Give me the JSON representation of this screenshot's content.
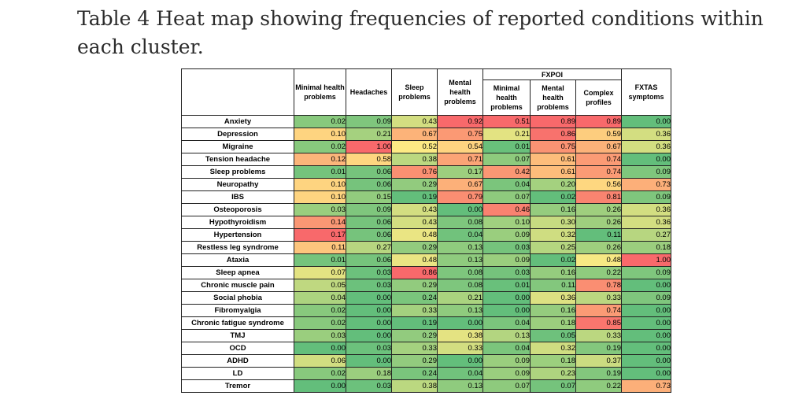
{
  "caption": "Table 4 Heat map showing frequencies of reported conditions within each cluster.",
  "table": {
    "group_header": "FXPOI",
    "columns": [
      "Minimal health problems",
      "Headaches",
      "Sleep problems",
      "Mental health problems",
      "Minimal health problems",
      "Mental health problems",
      "Complex profiles",
      "FXTAS symptoms"
    ],
    "rows": [
      {
        "label": "Anxiety",
        "values": [
          "0.02",
          "0.09",
          "0.43",
          "0.92",
          "0.51",
          "0.89",
          "0.89",
          "0.00"
        ]
      },
      {
        "label": "Depression",
        "values": [
          "0.10",
          "0.21",
          "0.67",
          "0.75",
          "0.21",
          "0.86",
          "0.59",
          "0.36"
        ]
      },
      {
        "label": "Migraine",
        "values": [
          "0.02",
          "1.00",
          "0.52",
          "0.54",
          "0.01",
          "0.75",
          "0.67",
          "0.36"
        ]
      },
      {
        "label": "Tension headache",
        "values": [
          "0.12",
          "0.58",
          "0.38",
          "0.71",
          "0.07",
          "0.61",
          "0.74",
          "0.00"
        ]
      },
      {
        "label": "Sleep problems",
        "values": [
          "0.01",
          "0.06",
          "0.76",
          "0.17",
          "0.42",
          "0.61",
          "0.74",
          "0.09"
        ]
      },
      {
        "label": "Neuropathy",
        "values": [
          "0.10",
          "0.06",
          "0.29",
          "0.67",
          "0.04",
          "0.20",
          "0.56",
          "0.73"
        ]
      },
      {
        "label": "IBS",
        "values": [
          "0.10",
          "0.15",
          "0.19",
          "0.79",
          "0.07",
          "0.02",
          "0.81",
          "0.09"
        ]
      },
      {
        "label": "Osteoporosis",
        "values": [
          "0.03",
          "0.09",
          "0.43",
          "0.00",
          "0.46",
          "0.16",
          "0.26",
          "0.36"
        ]
      },
      {
        "label": "Hypothyroidism",
        "values": [
          "0.14",
          "0.06",
          "0.43",
          "0.08",
          "0.10",
          "0.30",
          "0.26",
          "0.36"
        ]
      },
      {
        "label": "Hypertension",
        "values": [
          "0.17",
          "0.06",
          "0.48",
          "0.04",
          "0.09",
          "0.32",
          "0.11",
          "0.27"
        ]
      },
      {
        "label": "Restless leg syndrome",
        "values": [
          "0.11",
          "0.27",
          "0.29",
          "0.13",
          "0.03",
          "0.25",
          "0.26",
          "0.18"
        ]
      },
      {
        "label": "Ataxia",
        "values": [
          "0.01",
          "0.06",
          "0.48",
          "0.13",
          "0.09",
          "0.02",
          "0.48",
          "1.00"
        ]
      },
      {
        "label": "Sleep apnea",
        "values": [
          "0.07",
          "0.03",
          "0.86",
          "0.08",
          "0.03",
          "0.16",
          "0.22",
          "0.09"
        ]
      },
      {
        "label": "Chronic muscle pain",
        "values": [
          "0.05",
          "0.03",
          "0.29",
          "0.08",
          "0.01",
          "0.11",
          "0.78",
          "0.00"
        ]
      },
      {
        "label": "Social phobia",
        "values": [
          "0.04",
          "0.00",
          "0.24",
          "0.21",
          "0.00",
          "0.36",
          "0.33",
          "0.09"
        ]
      },
      {
        "label": "Fibromyalgia",
        "values": [
          "0.02",
          "0.00",
          "0.33",
          "0.13",
          "0.00",
          "0.16",
          "0.74",
          "0.00"
        ]
      },
      {
        "label": "Chronic fatigue syndrome",
        "values": [
          "0.02",
          "0.00",
          "0.19",
          "0.00",
          "0.04",
          "0.18",
          "0.85",
          "0.00"
        ]
      },
      {
        "label": "TMJ",
        "values": [
          "0.03",
          "0.00",
          "0.29",
          "0.38",
          "0.13",
          "0.05",
          "0.33",
          "0.00"
        ]
      },
      {
        "label": "OCD",
        "values": [
          "0.00",
          "0.03",
          "0.33",
          "0.33",
          "0.04",
          "0.32",
          "0.19",
          "0.00"
        ]
      },
      {
        "label": "ADHD",
        "values": [
          "0.06",
          "0.00",
          "0.29",
          "0.00",
          "0.09",
          "0.18",
          "0.37",
          "0.00"
        ]
      },
      {
        "label": "LD",
        "values": [
          "0.02",
          "0.18",
          "0.24",
          "0.04",
          "0.09",
          "0.23",
          "0.19",
          "0.00"
        ]
      },
      {
        "label": "Tremor",
        "values": [
          "0.00",
          "0.03",
          "0.38",
          "0.13",
          "0.07",
          "0.07",
          "0.22",
          "0.73"
        ]
      }
    ]
  }
}
